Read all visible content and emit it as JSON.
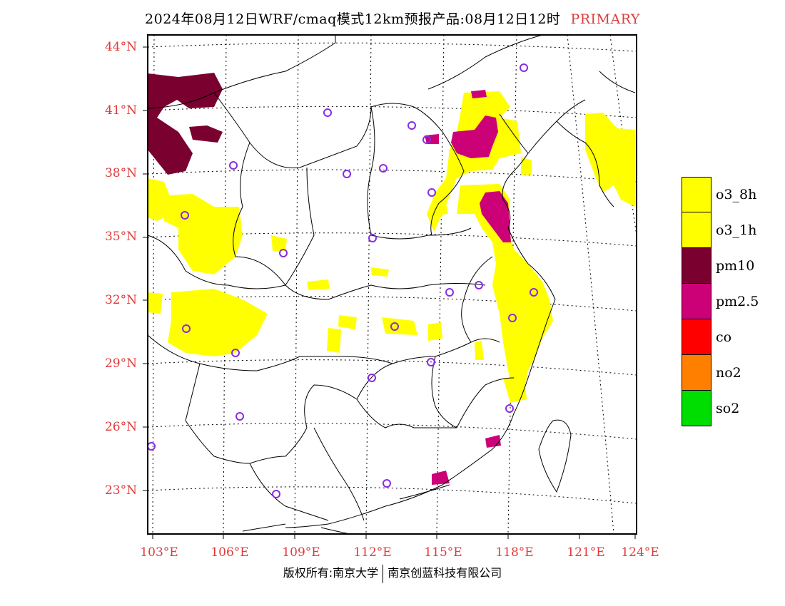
{
  "title": {
    "main": "2024年08月12日WRF/cmaq模式12km预报产品:08月12日12时",
    "tag": "PRIMARY"
  },
  "axes": {
    "lat_labels": [
      "44°N",
      "41°N",
      "38°N",
      "35°N",
      "32°N",
      "29°N",
      "26°N",
      "23°N"
    ],
    "lon_labels": [
      "103°E",
      "106°E",
      "109°E",
      "112°E",
      "115°E",
      "118°E",
      "121°E",
      "124°E"
    ]
  },
  "legend": [
    {
      "label": "o3_8h",
      "color": "#ffff00"
    },
    {
      "label": "o3_1h",
      "color": "#ffff00"
    },
    {
      "label": "pm10",
      "color": "#7a0030"
    },
    {
      "label": "pm2.5",
      "color": "#cc0077"
    },
    {
      "label": "co",
      "color": "#ff0000"
    },
    {
      "label": "no2",
      "color": "#ff8000"
    },
    {
      "label": "so2",
      "color": "#00dd00"
    }
  ],
  "footer": {
    "left": "版权所有:南京大学",
    "right": "南京创蓝科技有限公司"
  },
  "colors": {
    "axis_label": "#e23a3a",
    "o3": "#ffff00",
    "pm10": "#7a0030",
    "pm25": "#cc0077",
    "station": "#8a2be2"
  }
}
